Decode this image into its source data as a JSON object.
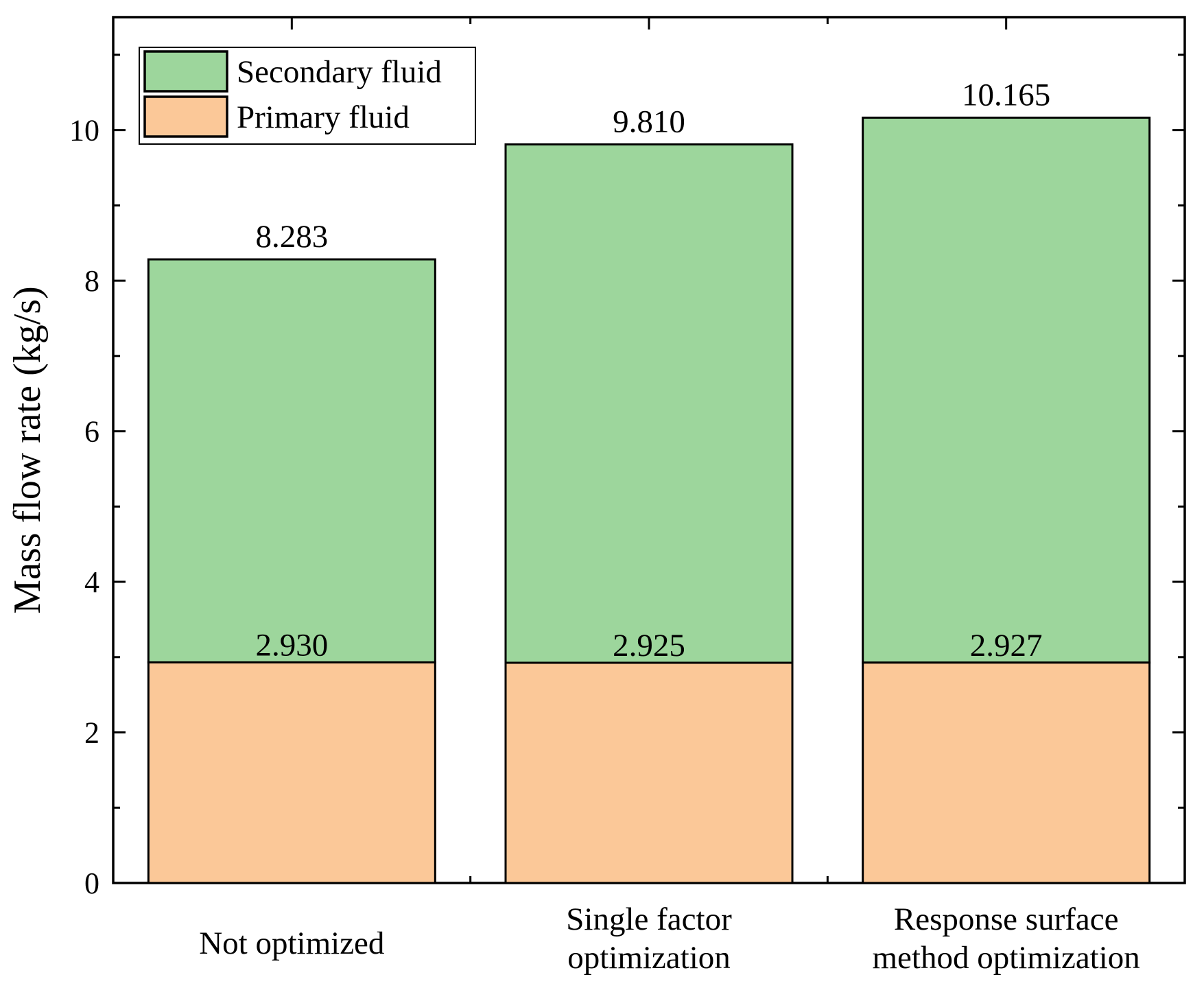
{
  "chart_data": {
    "type": "bar",
    "stacked": true,
    "title": "",
    "xlabel": "",
    "ylabel": "Mass flow rate (kg/s)",
    "ylim": [
      0,
      11.5
    ],
    "yticks": [
      0,
      2,
      4,
      6,
      8,
      10
    ],
    "categories": [
      [
        "Not optimized"
      ],
      [
        "Single factor",
        "optimization"
      ],
      [
        "Response surface",
        "method optimization"
      ]
    ],
    "series": [
      {
        "name": "Primary fluid",
        "color": "#fbc898",
        "values": [
          2.93,
          2.925,
          2.927
        ]
      },
      {
        "name": "Secondary fluid",
        "color": "#9dd69c",
        "values": [
          5.353,
          6.885,
          7.238
        ]
      }
    ],
    "primary_labels": [
      "2.930",
      "2.925",
      "2.927"
    ],
    "total_labels": [
      "8.283",
      "9.810",
      "10.165"
    ],
    "totals": [
      8.283,
      9.81,
      10.165
    ],
    "legend": {
      "position": "top-left",
      "entries": [
        {
          "name": "Secondary fluid",
          "color": "#9dd69c"
        },
        {
          "name": "Primary fluid",
          "color": "#fbc898"
        }
      ]
    },
    "grid": false
  }
}
